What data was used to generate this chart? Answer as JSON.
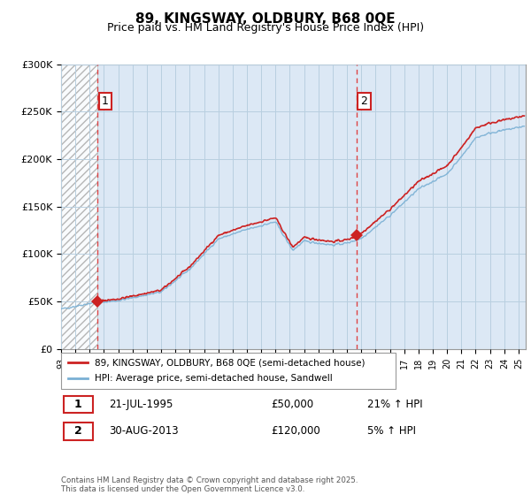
{
  "title": "89, KINGSWAY, OLDBURY, B68 0QE",
  "subtitle": "Price paid vs. HM Land Registry's House Price Index (HPI)",
  "legend_label_red": "89, KINGSWAY, OLDBURY, B68 0QE (semi-detached house)",
  "legend_label_blue": "HPI: Average price, semi-detached house, Sandwell",
  "sale1_date": "21-JUL-1995",
  "sale1_price": 50000,
  "sale1_hpi": "21%",
  "sale1_year": 1995.55,
  "sale2_date": "30-AUG-2013",
  "sale2_price": 120000,
  "sale2_hpi": "5%",
  "sale2_year": 2013.66,
  "footer": "Contains HM Land Registry data © Crown copyright and database right 2025.\nThis data is licensed under the Open Government Licence v3.0.",
  "ylim": [
    0,
    300000
  ],
  "xlim_start": 1993.0,
  "xlim_end": 2025.5,
  "hatch_end_year": 1995.55,
  "red_color": "#cc2222",
  "blue_color": "#7ab0d4",
  "dashed_color": "#dd4444",
  "chart_bg": "#dce8f5",
  "grid_color": "#b8cfe0",
  "border_color": "#999999"
}
